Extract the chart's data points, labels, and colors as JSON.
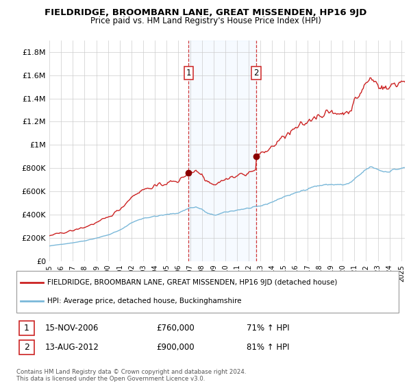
{
  "title": "FIELDRIDGE, BROOMBARN LANE, GREAT MISSENDEN, HP16 9JD",
  "subtitle": "Price paid vs. HM Land Registry's House Price Index (HPI)",
  "legend_line1": "FIELDRIDGE, BROOMBARN LANE, GREAT MISSENDEN, HP16 9JD (detached house)",
  "legend_line2": "HPI: Average price, detached house, Buckinghamshire",
  "transaction1_date": "15-NOV-2006",
  "transaction1_price": "£760,000",
  "transaction1_hpi": "71% ↑ HPI",
  "transaction2_date": "13-AUG-2012",
  "transaction2_price": "£900,000",
  "transaction2_hpi": "81% ↑ HPI",
  "footnote": "Contains HM Land Registry data © Crown copyright and database right 2024.\nThis data is licensed under the Open Government Licence v3.0.",
  "hpi_color": "#7ab8d9",
  "property_color": "#cc2222",
  "marker_color": "#8b0000",
  "vline_color": "#cc2222",
  "highlight_color": "#dceeff",
  "ylim": [
    0,
    1900000
  ],
  "yticks": [
    0,
    200000,
    400000,
    600000,
    800000,
    1000000,
    1200000,
    1400000,
    1600000,
    1800000
  ],
  "ytick_labels": [
    "£0",
    "£200K",
    "£400K",
    "£600K",
    "£800K",
    "£1M",
    "£1.2M",
    "£1.4M",
    "£1.6M",
    "£1.8M"
  ],
  "transaction1_x": 2006.88,
  "transaction2_x": 2012.62,
  "transaction1_y": 760000,
  "transaction2_y": 900000,
  "xmin": 1995.0,
  "xmax": 2025.3
}
